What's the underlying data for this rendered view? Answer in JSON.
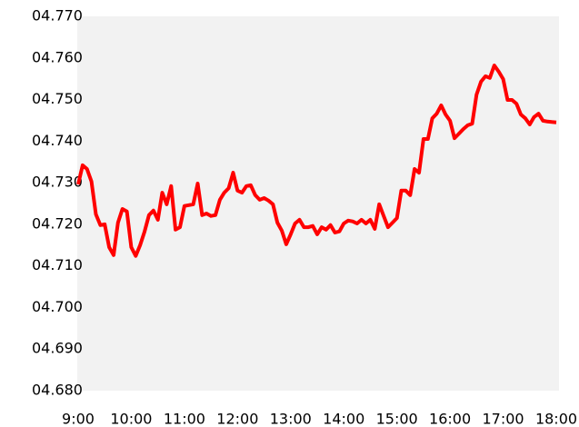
{
  "chart_data": {
    "type": "line",
    "categories": [
      "9:00",
      null,
      null,
      null,
      null,
      null,
      null,
      null,
      null,
      null,
      null,
      null,
      "10:00",
      null,
      null,
      null,
      null,
      null,
      null,
      null,
      null,
      null,
      null,
      null,
      "11:00",
      null,
      null,
      null,
      null,
      null,
      null,
      null,
      null,
      null,
      null,
      null,
      "12:00",
      null,
      null,
      null,
      null,
      null,
      null,
      null,
      null,
      null,
      null,
      null,
      "13:00",
      null,
      null,
      null,
      null,
      null,
      null,
      null,
      null,
      null,
      null,
      null,
      "14:00",
      null,
      null,
      null,
      null,
      null,
      null,
      null,
      null,
      null,
      null,
      null,
      "15:00",
      null,
      null,
      null,
      null,
      null,
      null,
      null,
      null,
      null,
      null,
      null,
      "16:00",
      null,
      null,
      null,
      null,
      null,
      null,
      null,
      null,
      null,
      null,
      null,
      "17:00",
      null,
      null,
      null,
      null,
      null,
      null,
      null,
      null,
      null,
      null,
      null,
      "18:00"
    ],
    "series": [
      {
        "color": "#ff0000",
        "values": [
          4.7296,
          4.7342,
          4.7333,
          4.7303,
          4.7224,
          4.7198,
          4.72,
          4.7145,
          4.7126,
          4.7204,
          4.7237,
          4.7231,
          4.7145,
          4.7124,
          4.715,
          4.7183,
          4.7222,
          4.7233,
          4.7211,
          4.7276,
          4.7248,
          4.7292,
          4.7187,
          4.7193,
          4.7244,
          4.7246,
          4.7248,
          4.7298,
          4.7222,
          4.7226,
          4.722,
          4.7222,
          4.7259,
          4.7276,
          4.7287,
          4.7324,
          4.7281,
          4.7276,
          4.7292,
          4.7294,
          4.727,
          4.7259,
          4.7263,
          4.7257,
          4.7248,
          4.7204,
          4.7185,
          4.7152,
          4.7176,
          4.7202,
          4.7211,
          4.7193,
          4.7193,
          4.7196,
          4.7176,
          4.7193,
          4.7187,
          4.7198,
          4.718,
          4.7183,
          4.7202,
          4.7209,
          4.7207,
          4.7202,
          4.7211,
          4.7202,
          4.7211,
          4.7189,
          4.7248,
          4.722,
          4.7193,
          4.7204,
          4.7215,
          4.7281,
          4.7281,
          4.727,
          4.7333,
          4.7324,
          4.7405,
          4.7405,
          4.7455,
          4.7466,
          4.7486,
          4.7464,
          4.7449,
          4.7407,
          4.7418,
          4.7429,
          4.7438,
          4.7442,
          4.7512,
          4.7543,
          4.7556,
          4.7552,
          4.7582,
          4.7567,
          4.7549,
          4.7499,
          4.7499,
          4.749,
          4.7464,
          4.7455,
          4.744,
          4.7458,
          4.7466,
          4.7449,
          4.7447,
          4.7446,
          4.7445
        ]
      }
    ],
    "ylim": [
      4.68,
      4.77
    ],
    "yticks": [
      {
        "value": 4.68,
        "label": "04.680"
      },
      {
        "value": 4.69,
        "label": "04.690"
      },
      {
        "value": 4.7,
        "label": "04.700"
      },
      {
        "value": 4.71,
        "label": "04.710"
      },
      {
        "value": 4.72,
        "label": "04.720"
      },
      {
        "value": 4.73,
        "label": "04.730"
      },
      {
        "value": 4.74,
        "label": "04.740"
      },
      {
        "value": 4.75,
        "label": "04.750"
      },
      {
        "value": 4.76,
        "label": "04.760"
      },
      {
        "value": 4.77,
        "label": "04.770"
      }
    ]
  }
}
